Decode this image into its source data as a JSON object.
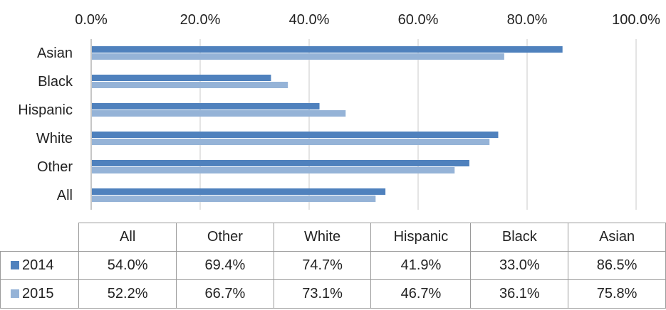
{
  "chart_data": {
    "type": "bar",
    "orientation": "horizontal",
    "categories": [
      "Asian",
      "Black",
      "Hispanic",
      "White",
      "Other",
      "All"
    ],
    "series": [
      {
        "name": "2014",
        "color": "#4f81bd",
        "values": [
          86.5,
          33.0,
          41.9,
          74.7,
          69.4,
          54.0
        ]
      },
      {
        "name": "2015",
        "color": "#95b3d7",
        "values": [
          75.8,
          36.1,
          46.7,
          73.1,
          66.7,
          52.2
        ]
      }
    ],
    "x_ticks": [
      "0.0%",
      "20.0%",
      "40.0%",
      "60.0%",
      "80.0%",
      "100.0%"
    ],
    "xlim": [
      0,
      100
    ],
    "grid": true,
    "data_table": {
      "columns": [
        "All",
        "Other",
        "White",
        "Hispanic",
        "Black",
        "Asian"
      ],
      "rows": [
        {
          "label": "2014",
          "values": [
            "54.0%",
            "69.4%",
            "74.7%",
            "41.9%",
            "33.0%",
            "86.5%"
          ]
        },
        {
          "label": "2015",
          "values": [
            "52.2%",
            "66.7%",
            "73.1%",
            "46.7%",
            "36.1%",
            "75.8%"
          ]
        }
      ]
    }
  }
}
